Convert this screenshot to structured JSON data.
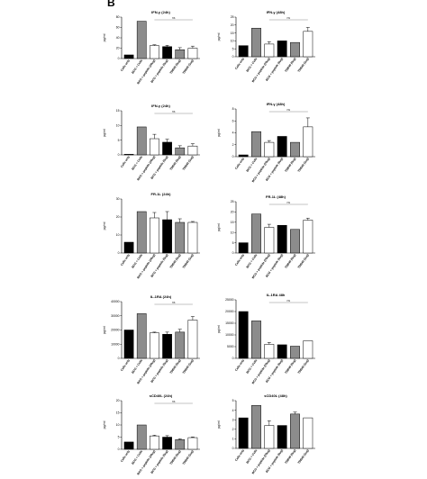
{
  "panel_label": "B",
  "category_labels": [
    "Cells only",
    "BCG + Cells",
    "BCG + peptide (20ug)",
    "BCG + peptide (5ug)",
    "TDB40 (5ug)",
    "TDB40 (1ug)"
  ],
  "colors": {
    "black": "#000000",
    "gray": "#8c8c8c",
    "white": "#ffffff",
    "bracket": "#888888"
  },
  "chart_data": [
    {
      "type": "bar",
      "title": "IFN-y (24h)",
      "ylabel": "pg/ml",
      "ylim": [
        0,
        80
      ],
      "yticks": [
        0,
        20,
        40,
        60,
        80
      ],
      "categories": [
        "Cells only",
        "BCG + Cells",
        "BCG + peptide (20ug)",
        "BCG + peptide (5ug)",
        "TDB40 (5ug)",
        "TDB40 (1ug)"
      ],
      "values": [
        7,
        72,
        25,
        23,
        17,
        20
      ],
      "errors": [
        0,
        0,
        1.5,
        2.5,
        4,
        4
      ],
      "fills": [
        "black",
        "gray",
        "white",
        "black",
        "gray",
        "white"
      ],
      "bracket": {
        "from": 2,
        "to": 5,
        "label": "ns"
      }
    },
    {
      "type": "bar",
      "title": "IFN-y (48h)",
      "ylabel": "pg/ml",
      "ylim": [
        0,
        25
      ],
      "yticks": [
        0,
        5,
        10,
        15,
        20,
        25
      ],
      "categories": [
        "Cells only",
        "BCG + Cells",
        "BCG + peptide (20ug)",
        "BCG + peptide (5ug)",
        "TDB40 (5ug)",
        "TDB40 (1ug)"
      ],
      "values": [
        7,
        18,
        8,
        10,
        9,
        16
      ],
      "errors": [
        0,
        0,
        1.5,
        0,
        0,
        2.5
      ],
      "fills": [
        "black",
        "gray",
        "white",
        "black",
        "gray",
        "white"
      ],
      "bracket": {
        "from": 2,
        "to": 5,
        "label": "ns"
      }
    },
    {
      "type": "bar",
      "title": "IFN-γ (24h)",
      "ylabel": "pg/ml",
      "ylim": [
        0,
        15
      ],
      "yticks": [
        0,
        5,
        10,
        15
      ],
      "categories": [
        "Cells only",
        "BCG + Cells",
        "BCG + peptide (20ug)",
        "BCG + peptide (5ug)",
        "TDB40 (5ug)",
        "TDB40 (1ug)"
      ],
      "values": [
        0.2,
        9.5,
        5.5,
        4.3,
        2.4,
        3
      ],
      "errors": [
        0,
        0,
        1.5,
        1,
        0.7,
        0.8
      ],
      "fills": [
        "black",
        "gray",
        "white",
        "black",
        "gray",
        "white"
      ],
      "bracket": {
        "from": 2,
        "to": 5,
        "label": "ns"
      }
    },
    {
      "type": "bar",
      "title": "IFN-γ (48h)",
      "ylabel": "pg/ml",
      "ylim": [
        0,
        8
      ],
      "yticks": [
        0,
        2,
        4,
        6,
        8
      ],
      "categories": [
        "Cells only",
        "BCG + Cells",
        "BCG + peptide (20ug)",
        "BCG + peptide (5ug)",
        "TDB40 (5ug)",
        "TDB40 (1ug)"
      ],
      "values": [
        0.3,
        4.2,
        2.4,
        3.4,
        2.4,
        5
      ],
      "errors": [
        0,
        0,
        0.3,
        0,
        0,
        1.5
      ],
      "fills": [
        "black",
        "gray",
        "white",
        "black",
        "gray",
        "white"
      ],
      "bracket": {
        "from": 2,
        "to": 5,
        "label": "ns"
      }
    },
    {
      "type": "bar",
      "title": "FR-1L (24h)",
      "ylabel": "pg/ml",
      "ylim": [
        0,
        30
      ],
      "yticks": [
        0,
        10,
        20,
        30
      ],
      "categories": [
        "Cells only",
        "BCG + Cells",
        "BCG + peptide (20ug)",
        "BCG + peptide (5ug)",
        "TDB40 (5ug)",
        "TDB40 (1ug)"
      ],
      "values": [
        6,
        23,
        19.5,
        18.5,
        17,
        17
      ],
      "errors": [
        0,
        0,
        3,
        4.5,
        2,
        0.5
      ],
      "fills": [
        "black",
        "gray",
        "white",
        "black",
        "gray",
        "white"
      ],
      "bracket": null
    },
    {
      "type": "bar",
      "title": "FR-1L (48h)",
      "ylabel": "pg/ml",
      "ylim": [
        0,
        25
      ],
      "yticks": [
        0,
        5,
        10,
        15,
        20,
        25
      ],
      "categories": [
        "Cells only",
        "BCG + Cells",
        "BCG + peptide (20ug)",
        "BCG + peptide (5ug)",
        "TDB40 (5ug)",
        "TDB40 (1ug)"
      ],
      "values": [
        5,
        19,
        12.5,
        13.5,
        11.5,
        16
      ],
      "errors": [
        0,
        0,
        1.5,
        0,
        0,
        1
      ],
      "fills": [
        "black",
        "gray",
        "white",
        "black",
        "gray",
        "white"
      ],
      "bracket": {
        "from": 2,
        "to": 5,
        "label": "ns"
      }
    },
    {
      "type": "bar",
      "title": "IL-1RA (24h)",
      "ylabel": "pg/ml",
      "ylim": [
        0,
        40000
      ],
      "yticks": [
        0,
        10000,
        20000,
        30000,
        40000
      ],
      "categories": [
        "Cells only",
        "BCG + Cells",
        "BCG + peptide (20ug)",
        "BCG + peptide (5ug)",
        "TDB40 (5ug)",
        "TDB40 (1ug)"
      ],
      "values": [
        20000,
        31500,
        18000,
        17000,
        18500,
        27000
      ],
      "errors": [
        0,
        0,
        500,
        1500,
        2000,
        2500
      ],
      "fills": [
        "black",
        "gray",
        "white",
        "black",
        "gray",
        "white"
      ],
      "bracket": {
        "from": 2,
        "to": 5,
        "label": "ns"
      }
    },
    {
      "type": "bar",
      "title": "IL-1RA 48h",
      "ylabel": "pg/ml",
      "ylim": [
        0,
        25000
      ],
      "yticks": [
        0,
        5000,
        10000,
        15000,
        20000,
        25000
      ],
      "categories": [
        "Cells only",
        "BCG + Cells",
        "BCG + peptide (20ug)",
        "BCG + peptide (5ug)",
        "TDB40 (5ug)",
        "TDB40 (1ug)"
      ],
      "values": [
        20000,
        16000,
        6000,
        5800,
        5200,
        7500
      ],
      "errors": [
        0,
        0,
        800,
        0,
        0,
        0
      ],
      "fills": [
        "black",
        "gray",
        "white",
        "black",
        "gray",
        "white"
      ],
      "bracket": {
        "from": 2,
        "to": 5,
        "label": "ns"
      }
    },
    {
      "type": "bar",
      "title": "sCD40L (24h)",
      "ylabel": "pg/ml",
      "ylim": [
        0,
        20
      ],
      "yticks": [
        0,
        5,
        10,
        15,
        20
      ],
      "categories": [
        "Cells only",
        "BCG + Cells",
        "BCG + peptide (20ug)",
        "BCG + peptide (5ug)",
        "TDB40 (5ug)",
        "TDB40 (1ug)"
      ],
      "values": [
        3,
        10,
        5.5,
        5,
        4,
        4.8
      ],
      "errors": [
        0,
        0,
        0.3,
        0.6,
        0.3,
        0.3
      ],
      "fills": [
        "black",
        "gray",
        "white",
        "black",
        "gray",
        "white"
      ],
      "bracket": {
        "from": 2,
        "to": 5,
        "label": "ns"
      }
    },
    {
      "type": "bar",
      "title": "sCD40L (48h)",
      "ylabel": "pg/ml",
      "ylim": [
        0,
        5
      ],
      "yticks": [
        0,
        1,
        2,
        3,
        4,
        5
      ],
      "categories": [
        "Cells only",
        "BCG + Cells",
        "BCG + peptide (20ug)",
        "BCG + peptide (5ug)",
        "TDB40 (5ug)",
        "TDB40 (1ug)"
      ],
      "values": [
        3.2,
        4.5,
        2.4,
        2.4,
        3.6,
        3.2
      ],
      "errors": [
        0,
        0,
        0.5,
        0,
        0.2,
        0
      ],
      "fills": [
        "black",
        "gray",
        "white",
        "black",
        "gray",
        "white"
      ],
      "bracket": null
    }
  ]
}
